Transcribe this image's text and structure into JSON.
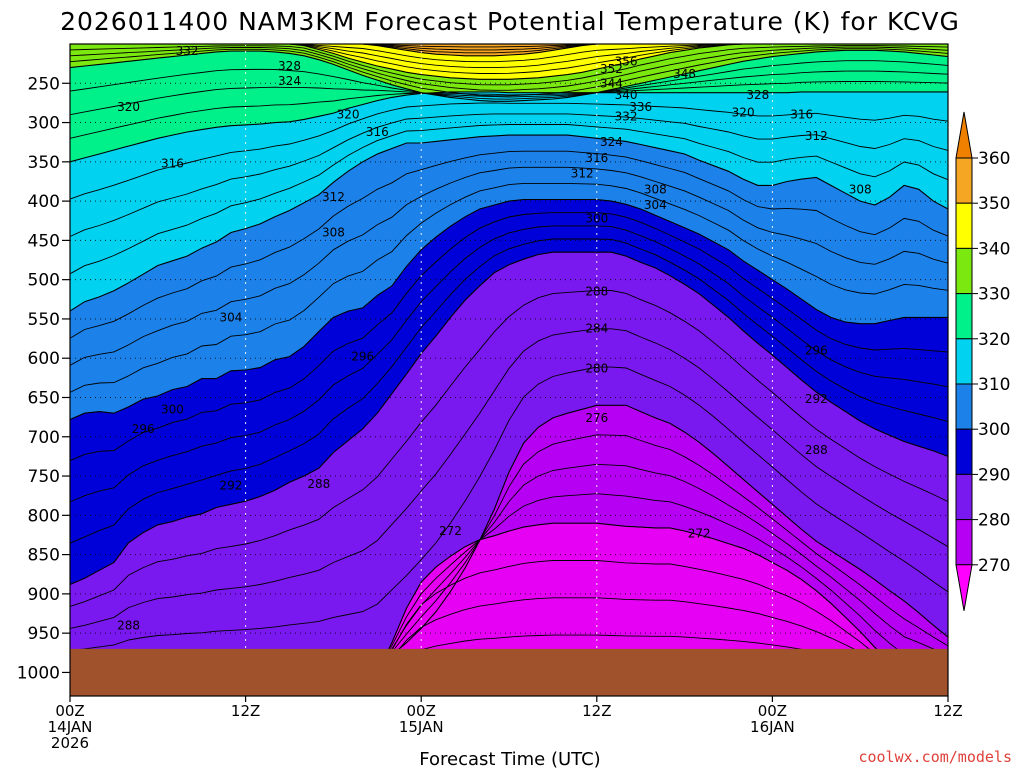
{
  "chart_data": {
    "type": "heatmap",
    "title": "2026011400 NAM3KM Forecast Potential Temperature (K) for KCVG",
    "xlabel": "Forecast Time (UTC)",
    "ylabel": "",
    "credit": "coolwx.com/models",
    "x_hours_range": [
      0,
      60
    ],
    "y_pressure_range": [
      200,
      1030
    ],
    "surface_pressure_hpa": 970,
    "y_ticks": [
      {
        "value": 250,
        "label": "250"
      },
      {
        "value": 300,
        "label": "300"
      },
      {
        "value": 350,
        "label": "350"
      },
      {
        "value": 400,
        "label": "400"
      },
      {
        "value": 450,
        "label": "450"
      },
      {
        "value": 500,
        "label": "500"
      },
      {
        "value": 550,
        "label": "550"
      },
      {
        "value": 600,
        "label": "600"
      },
      {
        "value": 650,
        "label": "650"
      },
      {
        "value": 700,
        "label": "700"
      },
      {
        "value": 750,
        "label": "750"
      },
      {
        "value": 800,
        "label": "800"
      },
      {
        "value": 850,
        "label": "850"
      },
      {
        "value": 900,
        "label": "900"
      },
      {
        "value": 950,
        "label": "950"
      },
      {
        "value": 1000,
        "label": "1000"
      }
    ],
    "x_ticks": [
      {
        "hour": 0,
        "lines": [
          "00Z",
          "14JAN",
          "2026"
        ]
      },
      {
        "hour": 12,
        "lines": [
          "12Z"
        ]
      },
      {
        "hour": 24,
        "lines": [
          "00Z",
          "15JAN"
        ]
      },
      {
        "hour": 36,
        "lines": [
          "12Z"
        ]
      },
      {
        "hour": 48,
        "lines": [
          "00Z",
          "16JAN"
        ]
      },
      {
        "hour": 60,
        "lines": [
          "12Z"
        ]
      }
    ],
    "colorbar": {
      "levels": [
        360,
        350,
        340,
        330,
        320,
        310,
        300,
        290,
        280,
        270
      ],
      "colors": [
        "#f5a623",
        "#ffff00",
        "#7be80f",
        "#00f08a",
        "#00d2f0",
        "#1c82ea",
        "#0000d8",
        "#7a18f0",
        "#b600f4",
        "#e600f4"
      ],
      "top_extend_color": "#f08000",
      "bottom_extend_color": "#ff00ff"
    },
    "series": [
      {
        "name": "270",
        "color": "#ff00ff",
        "y": [
          1000,
          1000,
          1000,
          1000,
          1000,
          1000,
          1000,
          1000,
          1000,
          1000,
          1000,
          1000,
          1000,
          1000,
          1000,
          1000,
          1000,
          1000,
          1000,
          1000,
          1000,
          1000,
          1000,
          1000,
          1000,
          1000,
          1000,
          1000,
          1000,
          1000,
          1000,
          1000,
          1000,
          1000,
          1000,
          1000,
          1000,
          1000,
          1000,
          1000,
          1000,
          1000,
          1000,
          1000,
          1000,
          1000,
          1000,
          1000,
          1000,
          1000,
          1000,
          1000,
          1000,
          1000,
          1000,
          1000,
          1000,
          1000,
          1000,
          1000,
          1000
        ]
      },
      {
        "name": "272",
        "color": "#e600f4",
        "y": [
          1000,
          1000,
          1000,
          1000,
          1000,
          1000,
          1000,
          1000,
          1000,
          1000,
          1000,
          1000,
          1000,
          1000,
          1000,
          1000,
          1000,
          1000,
          1000,
          1000,
          1000,
          1000,
          962,
          918,
          885,
          866,
          852,
          840,
          831,
          826,
          820,
          815,
          812,
          810,
          810,
          810,
          810,
          812,
          814,
          815,
          816,
          816,
          820,
          825,
          830,
          836,
          842,
          850,
          860,
          870,
          882,
          896,
          912,
          930,
          948,
          968,
          985,
          1000,
          1000,
          1000,
          1000
        ]
      },
      {
        "name": "280",
        "color": "#b600f4",
        "y": [
          1000,
          1000,
          1000,
          1000,
          1000,
          1000,
          1000,
          1000,
          1000,
          1000,
          1000,
          1000,
          1000,
          1000,
          1000,
          1000,
          1000,
          1000,
          1000,
          1000,
          1000,
          994,
          978,
          962,
          944,
          923,
          897,
          867,
          832,
          792,
          745,
          708,
          688,
          676,
          670,
          665,
          660,
          660,
          660,
          668,
          676,
          683,
          694,
          707,
          722,
          738,
          754,
          770,
          786,
          802,
          818,
          833,
          845,
          857,
          869,
          882,
          896,
          909,
          924,
          940,
          955
        ]
      },
      {
        "name": "290",
        "color": "#7a18f0",
        "y": [
          888,
          880,
          870,
          860,
          835,
          822,
          812,
          808,
          802,
          798,
          790,
          786,
          782,
          776,
          768,
          758,
          750,
          740,
          720,
          705,
          690,
          670,
          645,
          620,
          594,
          572,
          548,
          526,
          508,
          491,
          481,
          474,
          468,
          465,
          465,
          465,
          465,
          465,
          470,
          478,
          485,
          495,
          506,
          518,
          533,
          548,
          565,
          581,
          596,
          612,
          628,
          643,
          656,
          668,
          680,
          690,
          698,
          706,
          712,
          718,
          725
        ]
      },
      {
        "name": "300",
        "color": "#0000d8",
        "y": [
          678,
          670,
          668,
          670,
          662,
          652,
          648,
          640,
          636,
          626,
          626,
          616,
          615,
          612,
          602,
          598,
          585,
          566,
          548,
          540,
          536,
          520,
          508,
          483,
          462,
          446,
          432,
          420,
          410,
          405,
          400,
          398,
          398,
          398,
          398,
          398,
          398,
          400,
          404,
          410,
          418,
          426,
          434,
          442,
          452,
          462,
          476,
          488,
          500,
          512,
          525,
          538,
          548,
          554,
          556,
          556,
          552,
          548,
          548,
          548,
          548
        ]
      },
      {
        "name": "310",
        "color": "#1c82ea",
        "y": [
          540,
          528,
          522,
          514,
          504,
          493,
          482,
          476,
          470,
          460,
          452,
          440,
          435,
          429,
          420,
          412,
          402,
          392,
          376,
          362,
          350,
          340,
          333,
          326,
          326,
          324,
          322,
          320,
          318,
          317,
          316,
          316,
          316,
          316,
          316,
          318,
          320,
          322,
          324,
          328,
          332,
          336,
          340,
          348,
          355,
          362,
          372,
          380,
          380,
          375,
          372,
          370,
          380,
          390,
          400,
          405,
          395,
          380,
          385,
          400,
          410
        ]
      },
      {
        "name": "320",
        "color": "#00d2f0",
        "y": [
          350,
          345,
          340,
          335,
          330,
          325,
          320,
          316,
          312,
          309,
          306,
          304,
          303,
          302,
          300,
          299,
          296,
          292,
          288,
          282,
          277,
          272,
          268,
          265,
          263,
          262,
          261,
          261,
          261,
          261,
          262,
          262,
          262,
          262,
          262,
          262,
          262,
          262,
          262,
          262,
          262,
          262,
          262,
          262,
          262,
          262,
          262,
          262,
          262,
          262,
          261,
          261,
          261,
          261,
          261,
          261,
          261,
          261,
          261,
          261,
          261
        ]
      },
      {
        "name": "330",
        "color": "#00f08a",
        "y": [
          230,
          228,
          226,
          224,
          222,
          220,
          218,
          216,
          214,
          212,
          210,
          209,
          209,
          209,
          210,
          212,
          215,
          220,
          226,
          233,
          240,
          246,
          252,
          257,
          262,
          265,
          268,
          270,
          272,
          273,
          273,
          272,
          271,
          270,
          268,
          265,
          262,
          258,
          254,
          250,
          246,
          242,
          238,
          234,
          230,
          226,
          222,
          219,
          216,
          214,
          212,
          210,
          209,
          208,
          208,
          208,
          209,
          210,
          212,
          214,
          216
        ]
      },
      {
        "name": "340",
        "color": "#7be80f",
        "y": [
          200,
          200,
          200,
          200,
          200,
          200,
          200,
          200,
          200,
          200,
          200,
          200,
          200,
          200,
          200,
          200,
          202,
          207,
          212,
          218,
          223,
          228,
          232,
          236,
          239,
          241,
          243,
          244,
          245,
          245,
          245,
          244,
          243,
          241,
          239,
          236,
          232,
          228,
          224,
          219,
          215,
          211,
          208,
          205,
          203,
          201,
          200,
          200,
          200,
          200,
          200,
          200,
          200,
          200,
          200,
          200,
          200,
          200,
          200,
          200,
          200
        ]
      },
      {
        "name": "350",
        "color": "#ffff00",
        "y": [
          200,
          200,
          200,
          200,
          200,
          200,
          200,
          200,
          200,
          200,
          200,
          200,
          200,
          200,
          200,
          200,
          200,
          200,
          200,
          200,
          200,
          202,
          205,
          208,
          211,
          213,
          214,
          215,
          215,
          215,
          214,
          213,
          211,
          208,
          205,
          202,
          200,
          200,
          200,
          200,
          200,
          200,
          200,
          200,
          200,
          200,
          200,
          200,
          200,
          200,
          200,
          200,
          200,
          200,
          200,
          200,
          200,
          200,
          200,
          200,
          200
        ]
      },
      {
        "name": "360",
        "color": "#f5a623",
        "y": [
          200,
          200,
          200,
          200,
          200,
          200,
          200,
          200,
          200,
          200,
          200,
          200,
          200,
          200,
          200,
          200,
          200,
          200,
          200,
          200,
          200,
          200,
          200,
          200,
          200,
          200,
          200,
          200,
          200,
          200,
          200,
          200,
          200,
          200,
          200,
          200,
          200,
          200,
          200,
          200,
          200,
          200,
          200,
          200,
          200,
          200,
          200,
          200,
          200,
          200,
          200,
          200,
          200,
          200,
          200,
          200,
          200,
          200,
          200,
          200,
          200
        ]
      }
    ],
    "contour_labels": [
      {
        "text": "356",
        "hour": 38,
        "p": 222
      },
      {
        "text": "352",
        "hour": 37,
        "p": 232
      },
      {
        "text": "348",
        "hour": 42,
        "p": 238
      },
      {
        "text": "344",
        "hour": 37,
        "p": 250
      },
      {
        "text": "340",
        "hour": 38,
        "p": 265
      },
      {
        "text": "336",
        "hour": 39,
        "p": 280
      },
      {
        "text": "332",
        "hour": 38,
        "p": 292
      },
      {
        "text": "332",
        "hour": 8,
        "p": 209
      },
      {
        "text": "328",
        "hour": 15,
        "p": 228
      },
      {
        "text": "328",
        "hour": 47,
        "p": 265
      },
      {
        "text": "324",
        "hour": 15,
        "p": 247
      },
      {
        "text": "324",
        "hour": 37,
        "p": 325
      },
      {
        "text": "320",
        "hour": 4,
        "p": 280
      },
      {
        "text": "320",
        "hour": 19,
        "p": 290
      },
      {
        "text": "320",
        "hour": 46,
        "p": 287
      },
      {
        "text": "316",
        "hour": 21,
        "p": 312
      },
      {
        "text": "316",
        "hour": 36,
        "p": 345
      },
      {
        "text": "316",
        "hour": 50,
        "p": 290
      },
      {
        "text": "316",
        "hour": 7,
        "p": 352
      },
      {
        "text": "312",
        "hour": 35,
        "p": 365
      },
      {
        "text": "312",
        "hour": 51,
        "p": 317
      },
      {
        "text": "312",
        "hour": 18,
        "p": 395
      },
      {
        "text": "308",
        "hour": 40,
        "p": 385
      },
      {
        "text": "308",
        "hour": 54,
        "p": 385
      },
      {
        "text": "308",
        "hour": 18,
        "p": 440
      },
      {
        "text": "304",
        "hour": 40,
        "p": 405
      },
      {
        "text": "304",
        "hour": 11,
        "p": 548
      },
      {
        "text": "300",
        "hour": 36,
        "p": 422
      },
      {
        "text": "300",
        "hour": 7,
        "p": 665
      },
      {
        "text": "296",
        "hour": 20,
        "p": 598
      },
      {
        "text": "296",
        "hour": 51,
        "p": 590
      },
      {
        "text": "296",
        "hour": 5,
        "p": 690
      },
      {
        "text": "292",
        "hour": 51,
        "p": 652
      },
      {
        "text": "292",
        "hour": 11,
        "p": 762
      },
      {
        "text": "288",
        "hour": 36,
        "p": 515
      },
      {
        "text": "288",
        "hour": 17,
        "p": 760
      },
      {
        "text": "288",
        "hour": 51,
        "p": 717
      },
      {
        "text": "288",
        "hour": 4,
        "p": 940
      },
      {
        "text": "284",
        "hour": 36,
        "p": 562
      },
      {
        "text": "280",
        "hour": 36,
        "p": 613
      },
      {
        "text": "276",
        "hour": 36,
        "p": 676
      },
      {
        "text": "272",
        "hour": 26,
        "p": 820
      },
      {
        "text": "272",
        "hour": 43,
        "p": 823
      }
    ]
  }
}
